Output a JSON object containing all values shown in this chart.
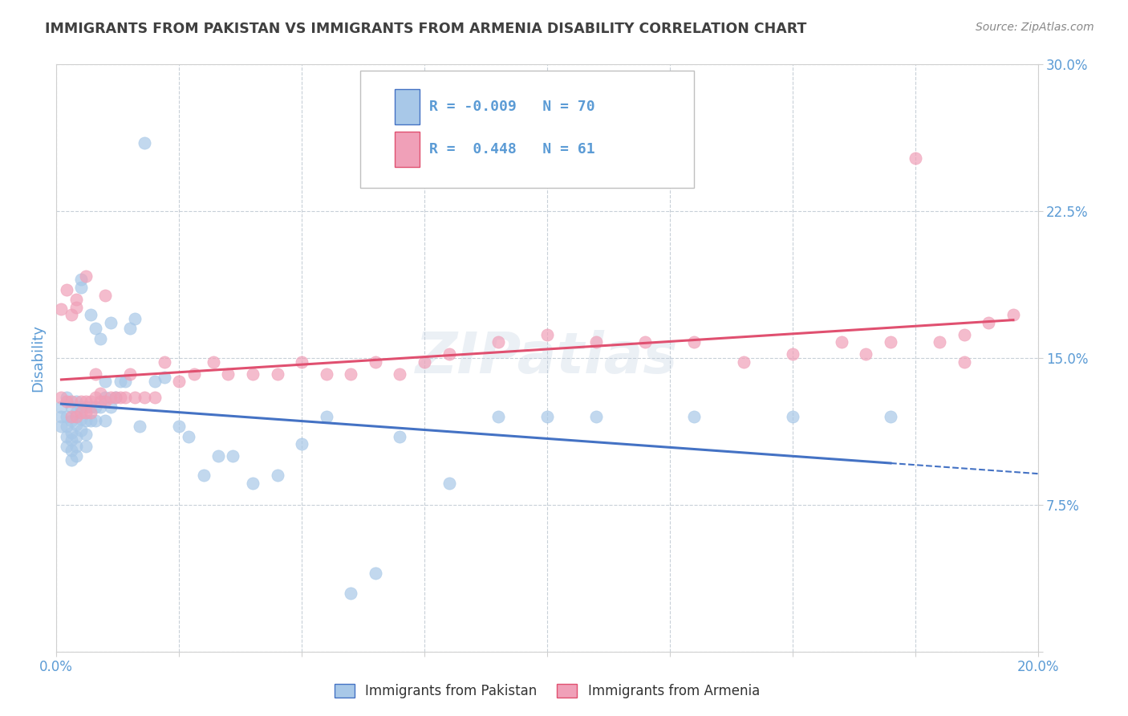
{
  "title": "IMMIGRANTS FROM PAKISTAN VS IMMIGRANTS FROM ARMENIA DISABILITY CORRELATION CHART",
  "source": "Source: ZipAtlas.com",
  "ylabel": "Disability",
  "xlim": [
    0.0,
    0.2
  ],
  "ylim": [
    0.0,
    0.3
  ],
  "pakistan_color": "#a8c8e8",
  "armenia_color": "#f0a0b8",
  "pakistan_line_color": "#4472c4",
  "armenia_line_color": "#e05070",
  "pakistan_R": -0.009,
  "pakistan_N": 70,
  "armenia_R": 0.448,
  "armenia_N": 61,
  "watermark": "ZIPatlas",
  "legend_label_1": "Immigrants from Pakistan",
  "legend_label_2": "Immigrants from Armenia",
  "pakistan_x": [
    0.001,
    0.001,
    0.001,
    0.002,
    0.002,
    0.002,
    0.002,
    0.002,
    0.003,
    0.003,
    0.003,
    0.003,
    0.003,
    0.003,
    0.004,
    0.004,
    0.004,
    0.004,
    0.004,
    0.004,
    0.005,
    0.005,
    0.005,
    0.005,
    0.005,
    0.006,
    0.006,
    0.006,
    0.006,
    0.007,
    0.007,
    0.007,
    0.008,
    0.008,
    0.008,
    0.009,
    0.009,
    0.01,
    0.01,
    0.01,
    0.011,
    0.011,
    0.012,
    0.013,
    0.014,
    0.015,
    0.016,
    0.017,
    0.018,
    0.02,
    0.022,
    0.025,
    0.027,
    0.03,
    0.033,
    0.036,
    0.04,
    0.045,
    0.05,
    0.055,
    0.06,
    0.065,
    0.07,
    0.08,
    0.09,
    0.1,
    0.11,
    0.13,
    0.15,
    0.17
  ],
  "pakistan_y": [
    0.125,
    0.12,
    0.115,
    0.13,
    0.12,
    0.115,
    0.11,
    0.105,
    0.125,
    0.118,
    0.112,
    0.108,
    0.103,
    0.098,
    0.128,
    0.122,
    0.116,
    0.11,
    0.105,
    0.1,
    0.19,
    0.186,
    0.125,
    0.119,
    0.113,
    0.125,
    0.118,
    0.111,
    0.105,
    0.172,
    0.125,
    0.118,
    0.165,
    0.125,
    0.118,
    0.16,
    0.125,
    0.138,
    0.13,
    0.118,
    0.168,
    0.125,
    0.13,
    0.138,
    0.138,
    0.165,
    0.17,
    0.115,
    0.26,
    0.138,
    0.14,
    0.115,
    0.11,
    0.09,
    0.1,
    0.1,
    0.086,
    0.09,
    0.106,
    0.12,
    0.03,
    0.04,
    0.11,
    0.086,
    0.12,
    0.12,
    0.12,
    0.12,
    0.12,
    0.12
  ],
  "armenia_x": [
    0.001,
    0.001,
    0.002,
    0.002,
    0.003,
    0.003,
    0.003,
    0.004,
    0.004,
    0.004,
    0.005,
    0.005,
    0.006,
    0.006,
    0.006,
    0.007,
    0.007,
    0.008,
    0.008,
    0.009,
    0.009,
    0.01,
    0.01,
    0.011,
    0.012,
    0.013,
    0.014,
    0.015,
    0.016,
    0.018,
    0.02,
    0.022,
    0.025,
    0.028,
    0.032,
    0.035,
    0.04,
    0.045,
    0.05,
    0.055,
    0.06,
    0.065,
    0.07,
    0.075,
    0.08,
    0.09,
    0.1,
    0.11,
    0.12,
    0.13,
    0.14,
    0.15,
    0.16,
    0.17,
    0.175,
    0.18,
    0.185,
    0.19,
    0.195,
    0.185,
    0.165
  ],
  "armenia_y": [
    0.175,
    0.13,
    0.185,
    0.128,
    0.172,
    0.128,
    0.12,
    0.18,
    0.176,
    0.12,
    0.128,
    0.122,
    0.128,
    0.122,
    0.192,
    0.122,
    0.128,
    0.13,
    0.142,
    0.128,
    0.132,
    0.128,
    0.182,
    0.13,
    0.13,
    0.13,
    0.13,
    0.142,
    0.13,
    0.13,
    0.13,
    0.148,
    0.138,
    0.142,
    0.148,
    0.142,
    0.142,
    0.142,
    0.148,
    0.142,
    0.142,
    0.148,
    0.142,
    0.148,
    0.152,
    0.158,
    0.162,
    0.158,
    0.158,
    0.158,
    0.148,
    0.152,
    0.158,
    0.158,
    0.252,
    0.158,
    0.162,
    0.168,
    0.172,
    0.148,
    0.152
  ],
  "background_color": "#ffffff",
  "grid_color": "#c8d0d8",
  "title_color": "#404040",
  "axis_label_color": "#5b9bd5",
  "tick_label_color": "#5b9bd5"
}
